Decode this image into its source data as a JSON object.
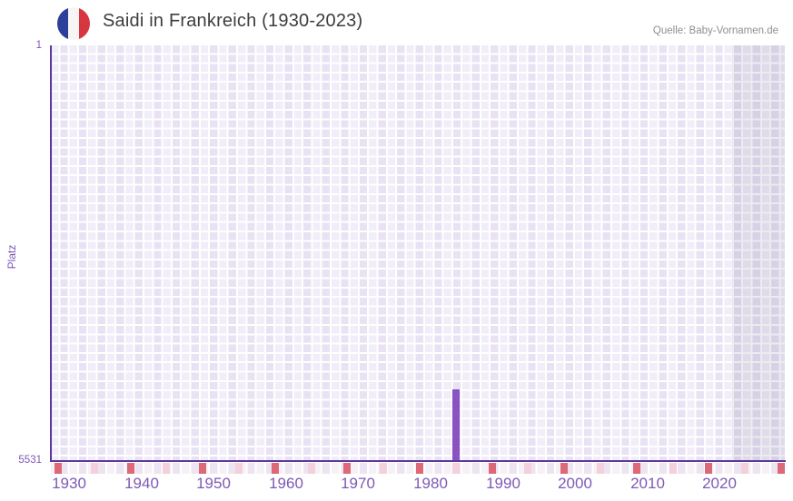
{
  "header": {
    "flag_icon": "france-flag",
    "title": "Saidi in Frankreich (1930-2023)",
    "source": "Quelle: Baby-Vornamen.de"
  },
  "chart_data": {
    "type": "bar",
    "title": "Saidi in Frankreich (1930-2023)",
    "xlabel": "",
    "ylabel": "Platz",
    "y_axis": {
      "inverted": true,
      "min": 1,
      "max": 5531,
      "tick_labels": [
        "1",
        "5531"
      ],
      "top_label": "1",
      "bottom_label": "5531"
    },
    "x_axis": {
      "start_year": 1930,
      "end_year": 2023,
      "decade_labels": [
        "1930",
        "1940",
        "1950",
        "1960",
        "1970",
        "1980",
        "1990",
        "2000",
        "2010",
        "2020"
      ],
      "major_tick_years": [
        1930,
        1940,
        1950,
        1960,
        1970,
        1980,
        1990,
        2000,
        2010,
        2020,
        2030
      ],
      "minor_tick_years": [
        1935,
        1945,
        1955,
        1965,
        1975,
        1985,
        1995,
        2005,
        2015,
        2025
      ]
    },
    "series": [
      {
        "name": "Platz",
        "points": [
          {
            "year": 1985,
            "platz": 4590
          }
        ]
      }
    ],
    "annotations": {
      "shaded_future_band": {
        "from_year": 2024,
        "note": "darker band right of data range"
      }
    },
    "grid": true,
    "legend": "none",
    "colors": {
      "bar": "#8a52c3",
      "axis_line": "#5c3699",
      "axis_text": "#7e57b5",
      "major_tick": "#dd6978",
      "minor_tick": "#f4d0dc",
      "plot_cell_light": "#f1edf9",
      "plot_cell_dark": "#e8e2f3",
      "future_band_overlay": "rgba(82,72,116,0.11)",
      "title_text": "#3d3d3d",
      "source_text": "#8f8f8f",
      "flag_blue": "#2e3e9b",
      "flag_red": "#d63640"
    }
  }
}
